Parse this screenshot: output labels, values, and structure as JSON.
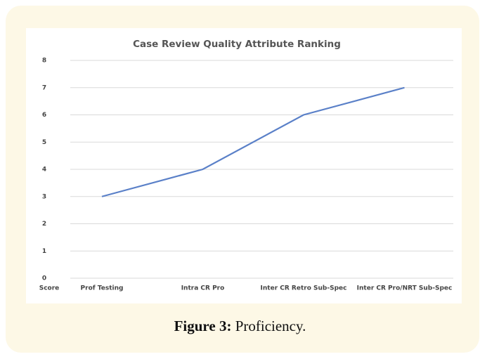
{
  "chart_data": {
    "type": "line",
    "title": "Case Review Quality Attribute Ranking",
    "axis_label": "Score",
    "categories": [
      "Prof Testing",
      "Intra  CR Pro",
      "Inter CR Retro  Sub-Spec",
      "Inter CR Pro/NRT Sub-Spec"
    ],
    "series": [
      {
        "name": "Score",
        "color": "#5a80c8",
        "values": [
          3,
          4,
          6,
          7
        ]
      }
    ],
    "ylim": [
      0,
      8
    ],
    "yticks": [
      0,
      1,
      2,
      3,
      4,
      5,
      6,
      7,
      8
    ],
    "grid": true
  },
  "caption": {
    "label": "Figure 3:",
    "text": "Proficiency."
  }
}
